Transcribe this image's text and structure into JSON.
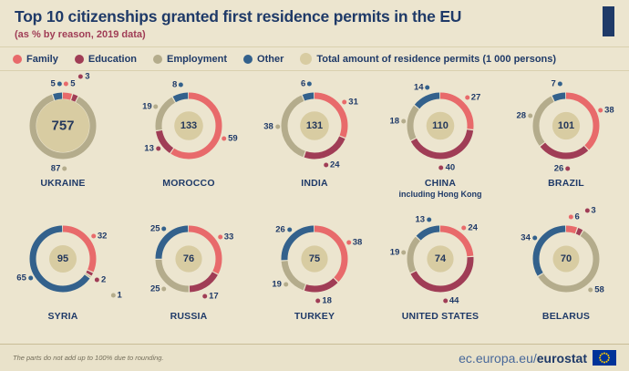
{
  "header": {
    "title": "Top 10 citizenships granted first residence permits in the EU",
    "subtitle": "(as % by reason, 2019 data)"
  },
  "legend": {
    "items": [
      {
        "key": "family",
        "label": "Family"
      },
      {
        "key": "education",
        "label": "Education"
      },
      {
        "key": "employment",
        "label": "Employment"
      },
      {
        "key": "other",
        "label": "Other"
      }
    ],
    "total": {
      "label": "Total amount of residence permits (1 000 persons)"
    }
  },
  "colors": {
    "family": "#e86a6b",
    "education": "#a03d56",
    "employment": "#b4ac8c",
    "other": "#33618c",
    "total_circle": "#d8cca2",
    "title": "#1f3a68",
    "subtitle": "#a03d56",
    "background": "#ece5cf"
  },
  "chart_data": {
    "type": "donut-grid",
    "unit": "% of first residence permits by reason, 2019",
    "reasons_order": [
      "family",
      "education",
      "employment",
      "other"
    ],
    "center_value_meaning": "total residence permits (1 000 persons)",
    "countries": [
      {
        "name": "UKRAINE",
        "total": 757,
        "values": {
          "family": 5,
          "education": 3,
          "employment": 87,
          "other": 5
        }
      },
      {
        "name": "MOROCCO",
        "total": 133,
        "values": {
          "family": 59,
          "education": 13,
          "employment": 19,
          "other": 8
        }
      },
      {
        "name": "INDIA",
        "total": 131,
        "values": {
          "family": 31,
          "education": 24,
          "employment": 38,
          "other": 6
        }
      },
      {
        "name": "CHINA",
        "subname": "including Hong Kong",
        "total": 110,
        "values": {
          "family": 27,
          "education": 40,
          "employment": 18,
          "other": 14
        }
      },
      {
        "name": "BRAZIL",
        "total": 101,
        "values": {
          "family": 38,
          "education": 26,
          "employment": 28,
          "other": 7
        }
      },
      {
        "name": "SYRIA",
        "total": 95,
        "values": {
          "family": 32,
          "education": 2,
          "employment": 1,
          "other": 65
        }
      },
      {
        "name": "RUSSIA",
        "total": 76,
        "values": {
          "family": 33,
          "education": 17,
          "employment": 25,
          "other": 25
        }
      },
      {
        "name": "TURKEY",
        "total": 75,
        "values": {
          "family": 38,
          "education": 18,
          "employment": 19,
          "other": 26
        }
      },
      {
        "name": "UNITED STATES",
        "total": 74,
        "values": {
          "family": 24,
          "education": 44,
          "employment": 19,
          "other": 13
        }
      },
      {
        "name": "BELARUS",
        "total": 70,
        "values": {
          "family": 6,
          "education": 3,
          "employment": 58,
          "other": 34
        }
      }
    ]
  },
  "footer": {
    "note": "The parts do not add up to 100% due to rounding.",
    "url_regular": "ec.europa.eu/",
    "url_bold": "eurostat"
  }
}
